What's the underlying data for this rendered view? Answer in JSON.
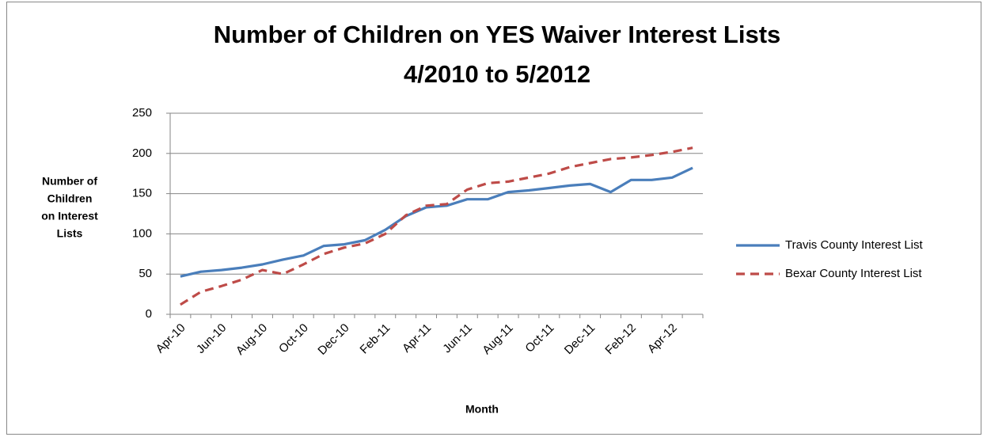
{
  "chart_data": {
    "type": "line",
    "title": [
      "Number of Children on YES Waiver Interest Lists",
      "4/2010 to 5/2012"
    ],
    "y_label": [
      "Number of",
      "Children",
      "on Interest",
      "Lists"
    ],
    "x_label": "Month",
    "categories": [
      "Apr-10",
      null,
      "Jun-10",
      null,
      "Aug-10",
      null,
      "Oct-10",
      null,
      "Dec-10",
      null,
      "Feb-11",
      null,
      "Apr-11",
      null,
      "Jun-11",
      null,
      "Aug-11",
      null,
      "Oct-11",
      null,
      "Dec-11",
      null,
      "Feb-12",
      null,
      "Apr-12",
      null
    ],
    "series": [
      {
        "name": "Travis County Interest List",
        "color": "#4a7ebb",
        "dashed": false,
        "values": [
          47,
          53,
          55,
          58,
          62,
          68,
          73,
          85,
          87,
          92,
          105,
          122,
          133,
          135,
          143,
          143,
          152,
          154,
          157,
          160,
          162,
          152,
          167,
          167,
          170,
          182
        ]
      },
      {
        "name": "Bexar County Interest List",
        "color": "#be4b48",
        "dashed": true,
        "values": [
          12,
          28,
          35,
          43,
          55,
          50,
          62,
          75,
          83,
          88,
          100,
          123,
          135,
          137,
          155,
          163,
          165,
          170,
          175,
          183,
          188,
          193,
          195,
          198,
          202,
          207
        ]
      }
    ],
    "ylim": [
      0,
      250
    ],
    "yticks": [
      0,
      50,
      100,
      150,
      200,
      250
    ],
    "grid": true,
    "legend": "right"
  }
}
